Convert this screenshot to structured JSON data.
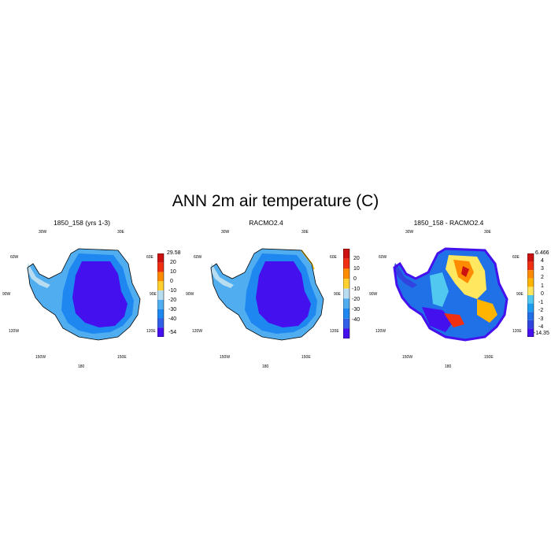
{
  "page_title": "ANN 2m air temperature (C)",
  "panels": [
    {
      "title": "1850_158 (yrs 1-3)"
    },
    {
      "title": "RACMO2.4"
    },
    {
      "title": "1850_158 - RACMO2.4"
    }
  ],
  "lon_labels": [
    "30W",
    "30E",
    "60W",
    "60E",
    "90W",
    "90E",
    "120W",
    "120E",
    "150W",
    "150E",
    "180"
  ],
  "chart_data": [
    {
      "type": "heatmap",
      "title": "1850_158 (yrs 1-3)",
      "projection": "south polar stereographic",
      "variable": "2m air temperature (C)",
      "colorbar": {
        "labels": [
          "29.58",
          "20",
          "10",
          "0",
          "-10",
          "-20",
          "-30",
          "-40",
          "-54"
        ],
        "levels": [
          20,
          10,
          0,
          -10,
          -20,
          -30,
          -40
        ],
        "min": -54,
        "max": 29.58,
        "colors": [
          "#cc1111",
          "#f03010",
          "#ff8c00",
          "#ffd030",
          "#b8dcf0",
          "#50aef0",
          "#1e88f0",
          "#3060e8",
          "#4411ee"
        ]
      }
    },
    {
      "type": "heatmap",
      "title": "RACMO2.4",
      "projection": "south polar stereographic",
      "variable": "2m air temperature (C)",
      "colorbar": {
        "labels": [
          "20",
          "10",
          "0",
          "-10",
          "-20",
          "-30",
          "-40"
        ],
        "levels": [
          20,
          10,
          0,
          -10,
          -20,
          -30,
          -40
        ],
        "colors": [
          "#cc1111",
          "#f03010",
          "#ff8c00",
          "#ffd030",
          "#b8dcf0",
          "#50aef0",
          "#1e88f0",
          "#3060e8",
          "#4411ee"
        ]
      }
    },
    {
      "type": "heatmap",
      "title": "1850_158 - RACMO2.4",
      "projection": "south polar stereographic",
      "variable": "2m air temperature difference (C)",
      "colorbar": {
        "labels": [
          "6.466",
          "4",
          "3",
          "2",
          "1",
          "0",
          "-1",
          "-2",
          "-3",
          "-4",
          "-14.35"
        ],
        "levels": [
          4,
          3,
          2,
          1,
          0,
          -1,
          -2,
          -3,
          -4
        ],
        "min": -14.35,
        "max": 6.466,
        "colors": [
          "#cc1111",
          "#f03010",
          "#ff8c00",
          "#ffb400",
          "#ffe860",
          "#50c8f0",
          "#1e9cf0",
          "#2070e8",
          "#3044e0",
          "#4411ee"
        ]
      }
    }
  ]
}
